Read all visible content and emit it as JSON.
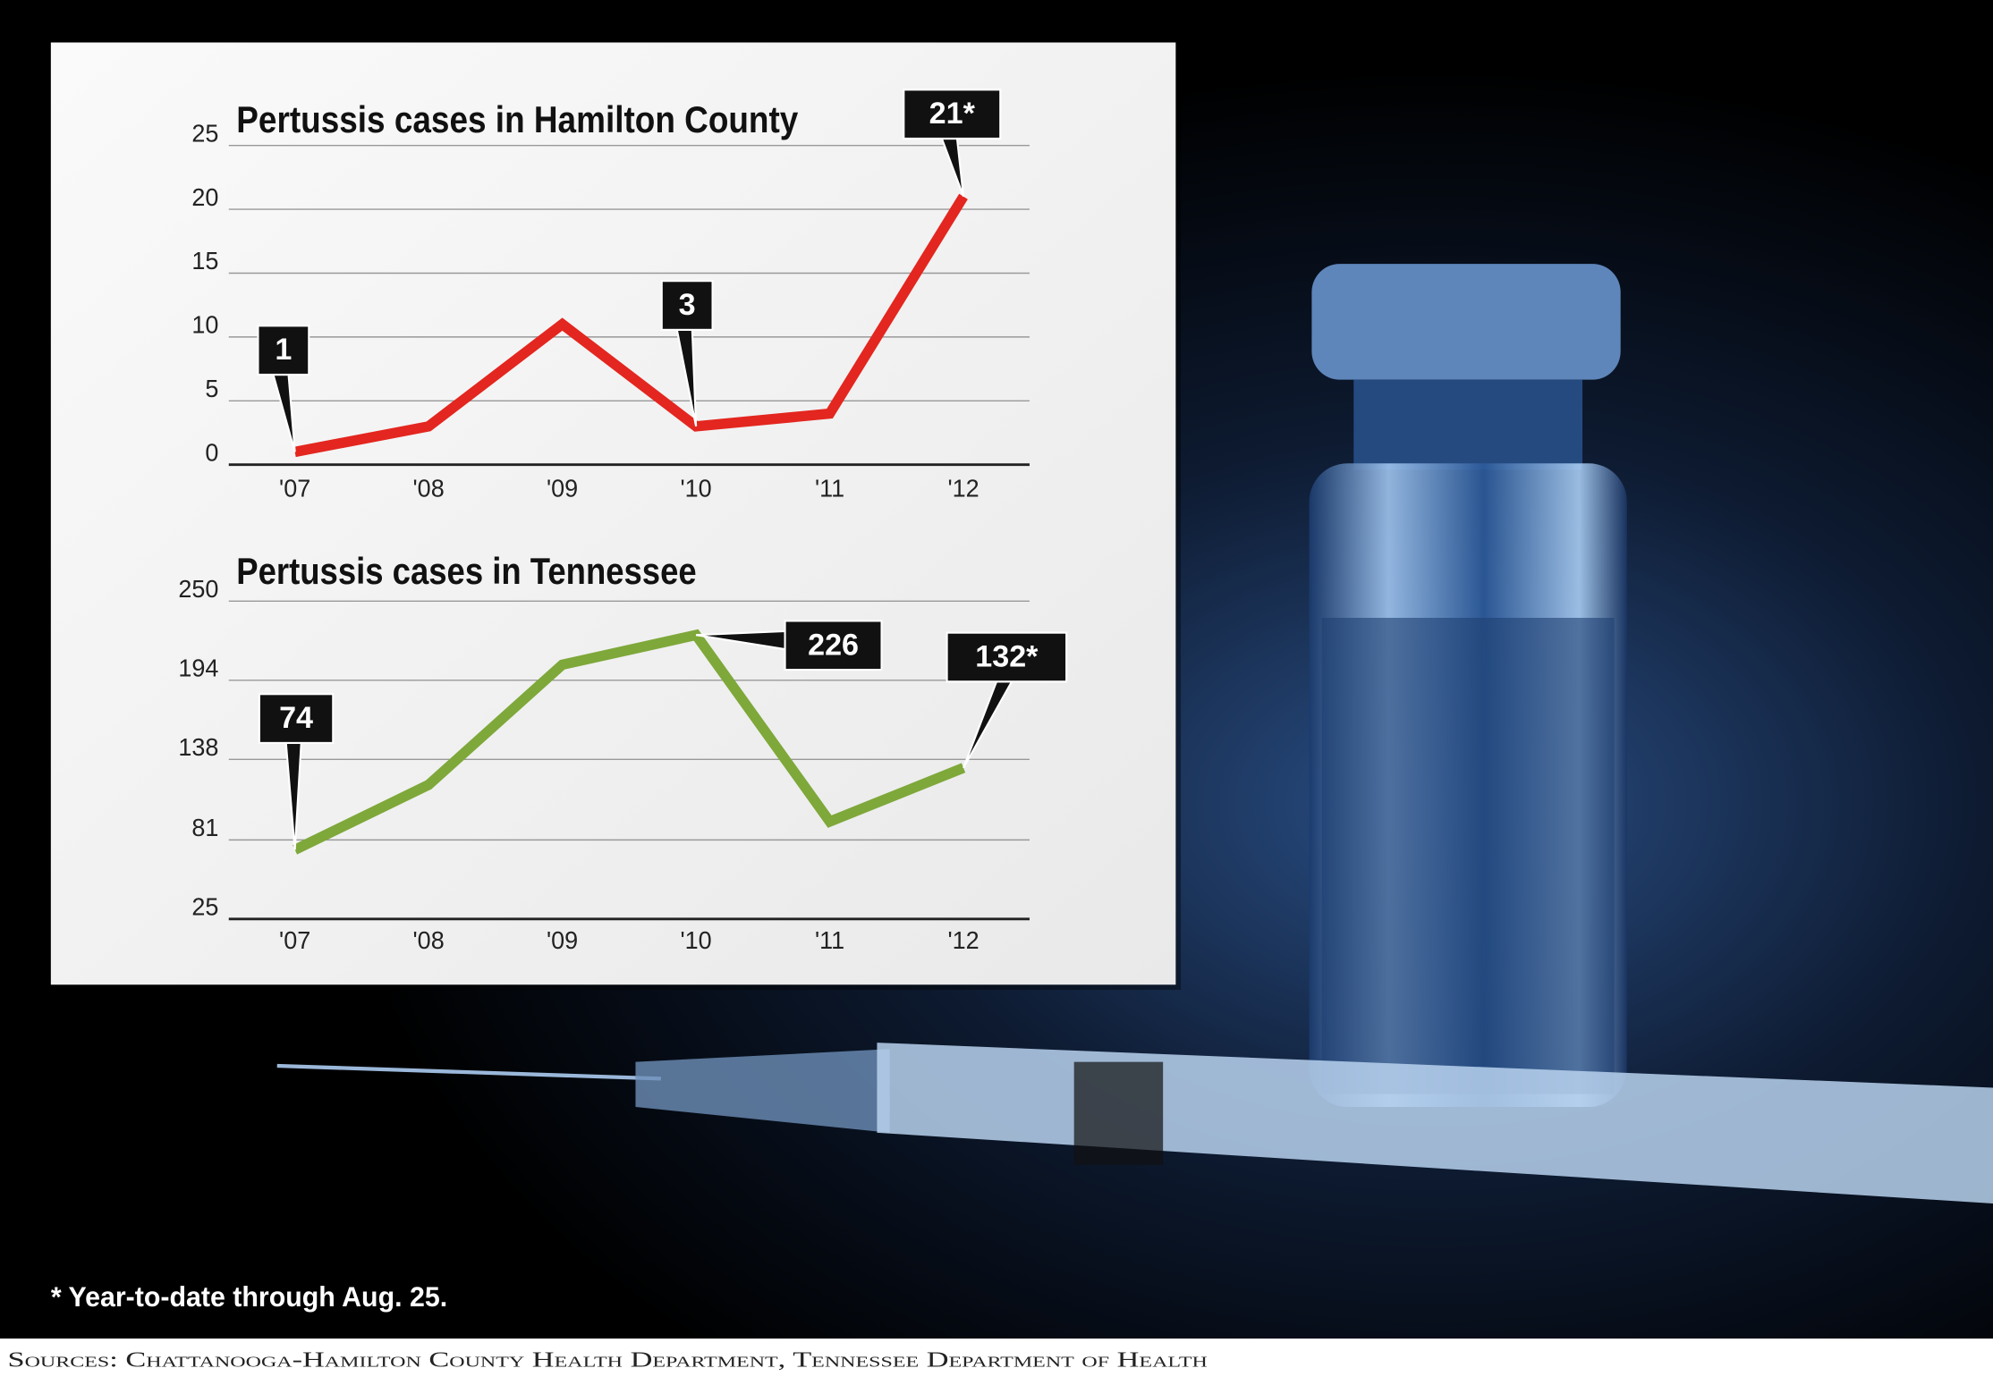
{
  "chart_data": [
    {
      "type": "line",
      "title": "Pertussis cases in Hamilton County",
      "categories": [
        "'07",
        "'08",
        "'09",
        "'10",
        "'11",
        "'12"
      ],
      "series": [
        {
          "color": "#e3261f",
          "values": [
            1,
            3,
            11,
            3,
            4,
            21
          ],
          "value_labels": [
            "1",
            null,
            null,
            "3",
            null,
            "21*"
          ]
        }
      ],
      "ylim": [
        0,
        25
      ],
      "yticks": [
        0,
        5,
        10,
        15,
        20,
        25
      ],
      "grid": true
    },
    {
      "type": "line",
      "title": "Pertussis cases in Tennessee",
      "categories": [
        "'07",
        "'08",
        "'09",
        "'10",
        "'11",
        "'12"
      ],
      "series": [
        {
          "color": "#7ea83a",
          "values": [
            74,
            120,
            205,
            226,
            94,
            132
          ],
          "value_labels": [
            "74",
            null,
            null,
            "226",
            null,
            "132*"
          ]
        }
      ],
      "ylim": [
        25,
        250
      ],
      "yticks": [
        25,
        81,
        138,
        194,
        250
      ],
      "grid": true
    }
  ],
  "footnote": "* Year-to-date through Aug. 25.",
  "source": "Sources: Chattanooga-Hamilton County Health Department, Tennessee Department of Health"
}
